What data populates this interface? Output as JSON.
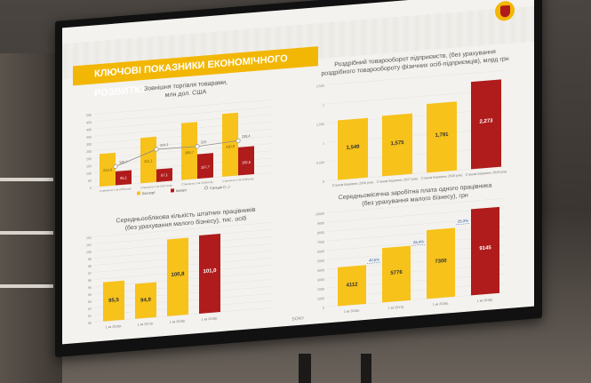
{
  "title": "КЛЮЧОВІ ПОКАЗНИКИ ЕКОНОМІЧНОГО РОЗВИТКУ",
  "monitor_brand": "SONY",
  "colors": {
    "yellow": "#f7c21a",
    "red": "#b01b1b",
    "accent": "#f2b705",
    "line": "#8c8c8c"
  },
  "chart_data": [
    {
      "type": "bar",
      "title": "Зовнішня торгівля товарами,\nмлн дол. США",
      "categories": [
        "Станом на 1 кв 2016 року",
        "Станом на 1 кв 2017 року",
        "Станом на 1 кв 2018 року",
        "Станом на 1 кв 2019 року"
      ],
      "series": [
        {
          "name": "Експорт",
          "type": "bar",
          "values": [
            223.8,
            311.1,
            389.7,
            430.9
          ]
        },
        {
          "name": "Імпорт",
          "type": "bar",
          "values": [
            95.1,
            87.1,
            167.7,
            192.5
          ]
        },
        {
          "name": "Сальдо (+,-)",
          "type": "line",
          "values": [
            128.7,
            224.1,
            222.0,
            238.4
          ]
        }
      ],
      "ylim": [
        0,
        500
      ]
    },
    {
      "type": "bar",
      "title": "Роздрібний товарооборот підприємств, (без урахування\nроздрібного товарообороту фізичних осіб-підприємців), млрд грн",
      "categories": [
        "Станом Березень 2016 року",
        "Станом Березень 2017 року",
        "Станом Березень 2018 року",
        "Станом Березень 2019 року"
      ],
      "values": [
        1.549,
        1.575,
        1.791,
        2.273
      ],
      "data_labels": [
        "1,549",
        "1,575",
        "1,791",
        "2,273"
      ],
      "ylim": [
        0,
        2.5
      ]
    },
    {
      "type": "bar",
      "title": "Середньооблікова кількість штатних працівників\n(без урахування малого бізнесу), тис. осіб",
      "categories": [
        "1 кв 2016р.",
        "1 кв 2017р.",
        "1 кв 2018р.",
        "1 кв 2019р."
      ],
      "values": [
        95.5,
        94.9,
        100.8,
        101.0
      ],
      "data_labels": [
        "95,5",
        "94,9",
        "100,8",
        "101,0"
      ],
      "ylim": [
        90,
        102
      ]
    },
    {
      "type": "bar",
      "title": "Середньомісячна заробітна плата одного працівника\n(без урахування малого бізнесу), грн",
      "categories": [
        "1 кв 2016р.",
        "1 кв 2017р.",
        "1 кв 2018р.",
        "1 кв 2019р."
      ],
      "values": [
        4112,
        5776,
        7300,
        9145
      ],
      "data_labels": [
        "4112",
        "5776",
        "7300",
        "9145"
      ],
      "growth_labels": [
        "40,5%",
        "26,4%",
        "25,3%"
      ],
      "ylim": [
        0,
        10000
      ]
    }
  ]
}
